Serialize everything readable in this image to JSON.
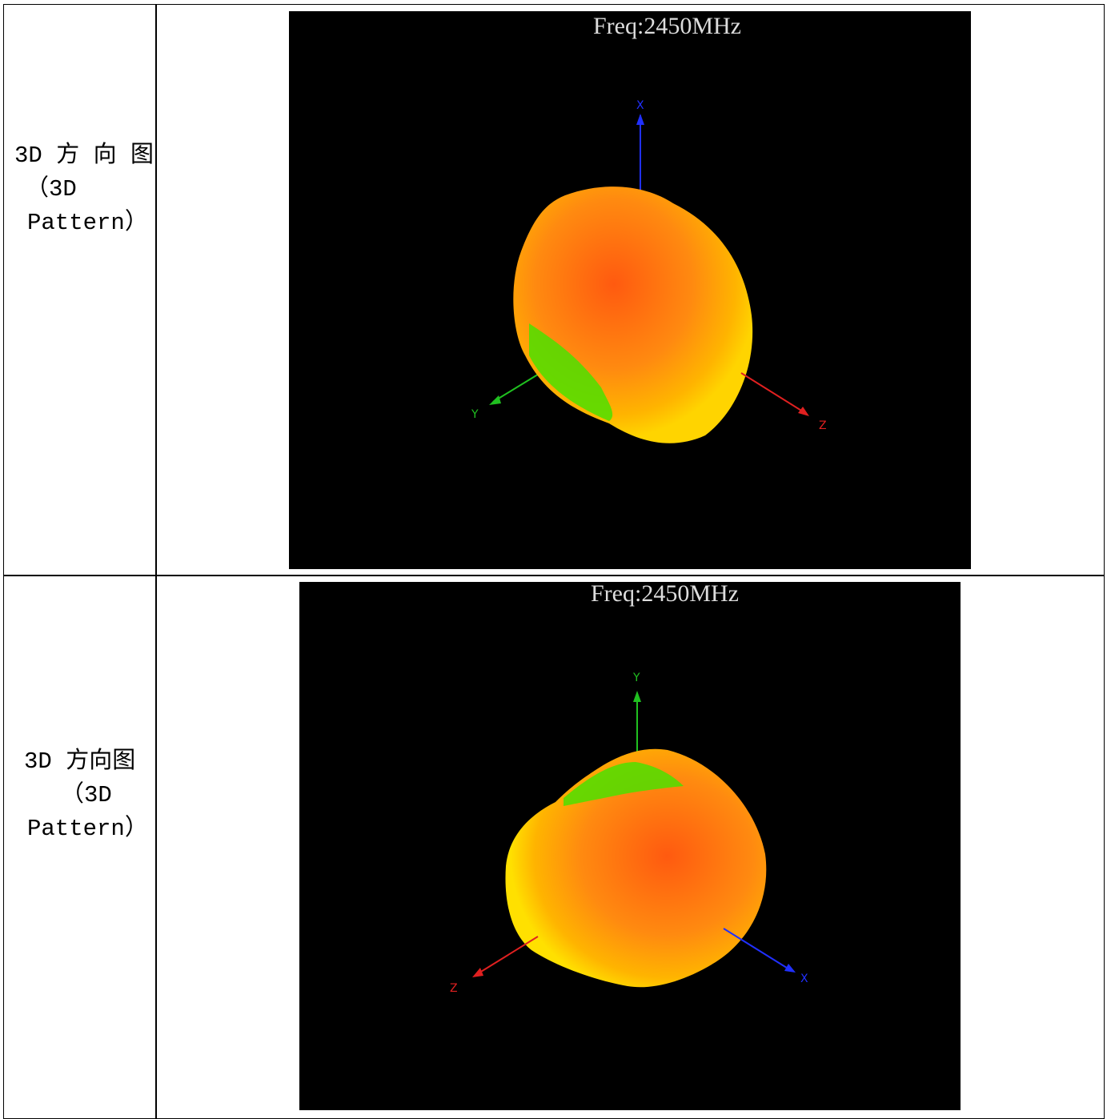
{
  "table": {
    "rows": [
      {
        "label": [
          "3D 方 向 图",
          "（3D",
          "Pattern）"
        ],
        "image": {
          "freq": "Freq:2450MHz",
          "axes": {
            "top": "X",
            "left": "Y",
            "right": "Z"
          }
        }
      },
      {
        "label": [
          "3D 方向图",
          "（3D",
          "Pattern）"
        ],
        "image": {
          "freq": "Freq:2450MHz",
          "axes": {
            "top": "Y",
            "left": "Z",
            "right": "X"
          }
        }
      }
    ]
  }
}
